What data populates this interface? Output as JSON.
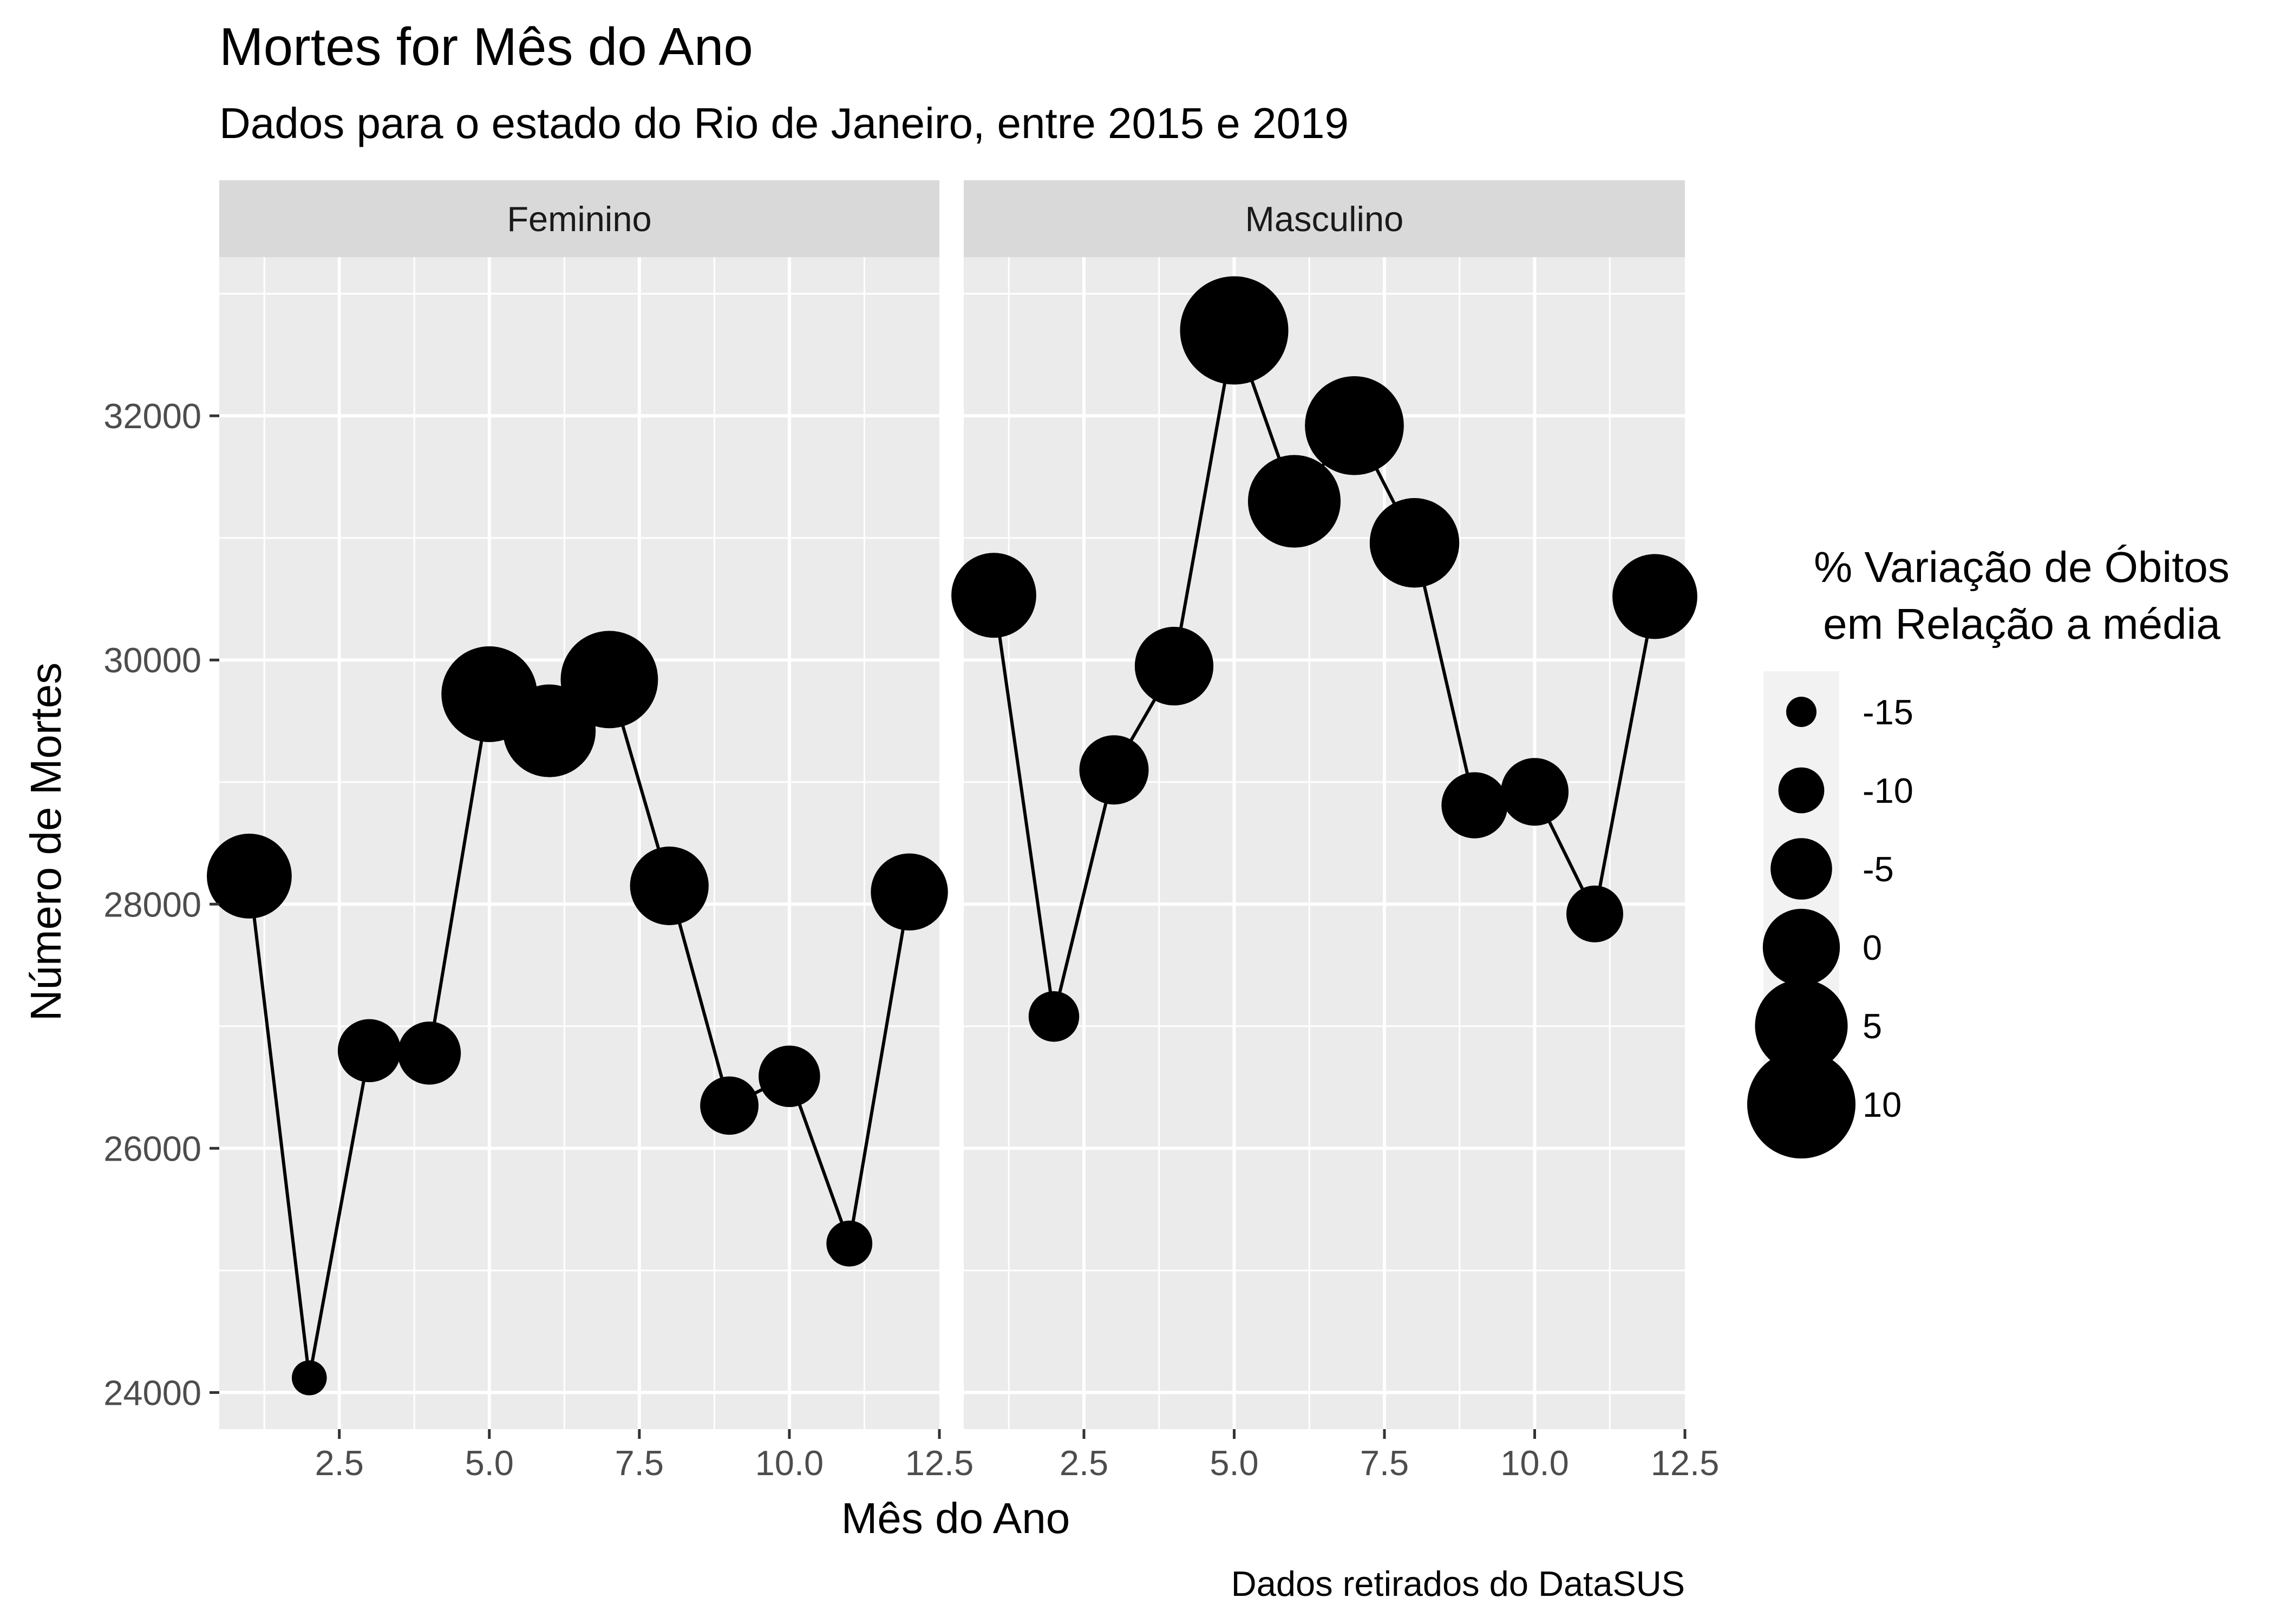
{
  "chart_data": {
    "type": "scatter",
    "title": "Mortes for Mês do Ano",
    "subtitle": "Dados para o estado do Rio de Janeiro, entre 2015 e 2019",
    "xlabel": "Mês do Ano",
    "ylabel": "Número de Mortes",
    "caption": "Dados retirados do DataSUS",
    "xlim": [
      0.5,
      12.5
    ],
    "ylim": [
      23700,
      33300
    ],
    "x_ticks": [
      2.5,
      5.0,
      7.5,
      10.0,
      12.5
    ],
    "x_tick_labels": [
      "2.5",
      "5.0",
      "7.5",
      "10.0",
      "12.5"
    ],
    "y_ticks": [
      24000,
      26000,
      28000,
      30000,
      32000
    ],
    "y_tick_labels": [
      "24000",
      "26000",
      "28000",
      "30000",
      "32000"
    ],
    "grid": true,
    "connect_points": true,
    "point_size_variable": "% Variação de Óbitos em Relação a média",
    "facets": [
      {
        "label": "Feminino",
        "x": [
          1,
          2,
          3,
          4,
          5,
          6,
          7,
          8,
          9,
          10,
          11,
          12
        ],
        "y": [
          28230,
          24120,
          26800,
          26780,
          29720,
          29420,
          29840,
          28150,
          26350,
          26590,
          25220,
          28100
        ],
        "pct_variation": [
          2.5,
          -13.5,
          -4.5,
          -4.5,
          6.0,
          5.0,
          6.5,
          0.5,
          -6.0,
          -5.0,
          -10.0,
          0.0
        ]
      },
      {
        "label": "Masculino",
        "x": [
          1,
          2,
          3,
          4,
          5,
          6,
          7,
          8,
          9,
          10,
          11,
          12
        ],
        "y": [
          30530,
          27080,
          29100,
          29950,
          32700,
          31300,
          31920,
          30960,
          28810,
          28920,
          27920,
          30520
        ],
        "pct_variation": [
          2.5,
          -8.5,
          -2.5,
          0.5,
          10.0,
          5.0,
          7.0,
          4.0,
          -3.5,
          -3.0,
          -6.5,
          2.5
        ]
      }
    ],
    "legend": {
      "title_line1": "% Variação de Óbitos",
      "title_line2": "em Relação a média",
      "position": "right",
      "breaks": [
        -15,
        -10,
        -5,
        0,
        5,
        10
      ],
      "labels": [
        "-15",
        "-10",
        "-5",
        "0",
        "5",
        "10"
      ]
    },
    "colors": {
      "panel_background": "#ebebeb",
      "strip_background": "#d9d9d9",
      "grid": "#ffffff",
      "points": "#000000",
      "line": "#000000"
    }
  }
}
